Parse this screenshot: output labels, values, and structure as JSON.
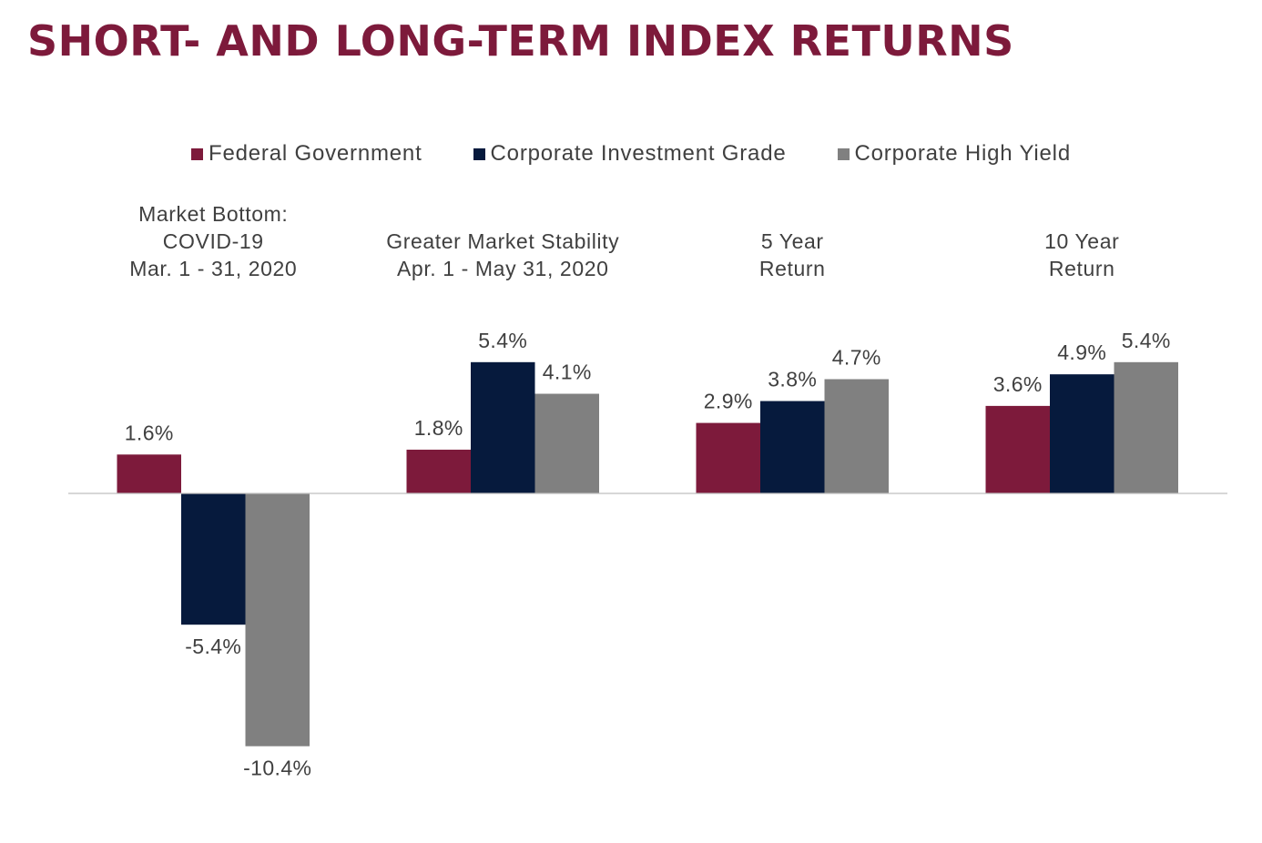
{
  "chart_data": {
    "type": "bar",
    "title": "SHORT- AND LONG-TERM INDEX RETURNS",
    "categories": [
      [
        "Market Bottom:",
        "COVID-19",
        "Mar. 1 - 31, 2020"
      ],
      [
        "Greater Market Stability",
        "Apr. 1 - May 31, 2020"
      ],
      [
        "5 Year",
        "Return"
      ],
      [
        "10 Year",
        "Return"
      ]
    ],
    "series": [
      {
        "name": "Federal Government",
        "color": "#7d1a3b",
        "values": [
          1.6,
          1.8,
          2.9,
          3.6
        ],
        "labels": [
          "1.6%",
          "1.8%",
          "2.9%",
          "3.6%"
        ]
      },
      {
        "name": "Corporate Investment Grade",
        "color": "#061a3d",
        "values": [
          -5.4,
          5.4,
          3.8,
          4.9
        ],
        "labels": [
          "-5.4%",
          "5.4%",
          "3.8%",
          "4.9%"
        ]
      },
      {
        "name": "Corporate High Yield",
        "color": "#808080",
        "values": [
          -10.4,
          4.1,
          4.7,
          5.4
        ],
        "labels": [
          "-10.4%",
          "4.1%",
          "4.7%",
          "5.4%"
        ]
      }
    ],
    "legend_position": "top",
    "grid": false,
    "ylim": [
      -10.4,
      5.4
    ]
  }
}
